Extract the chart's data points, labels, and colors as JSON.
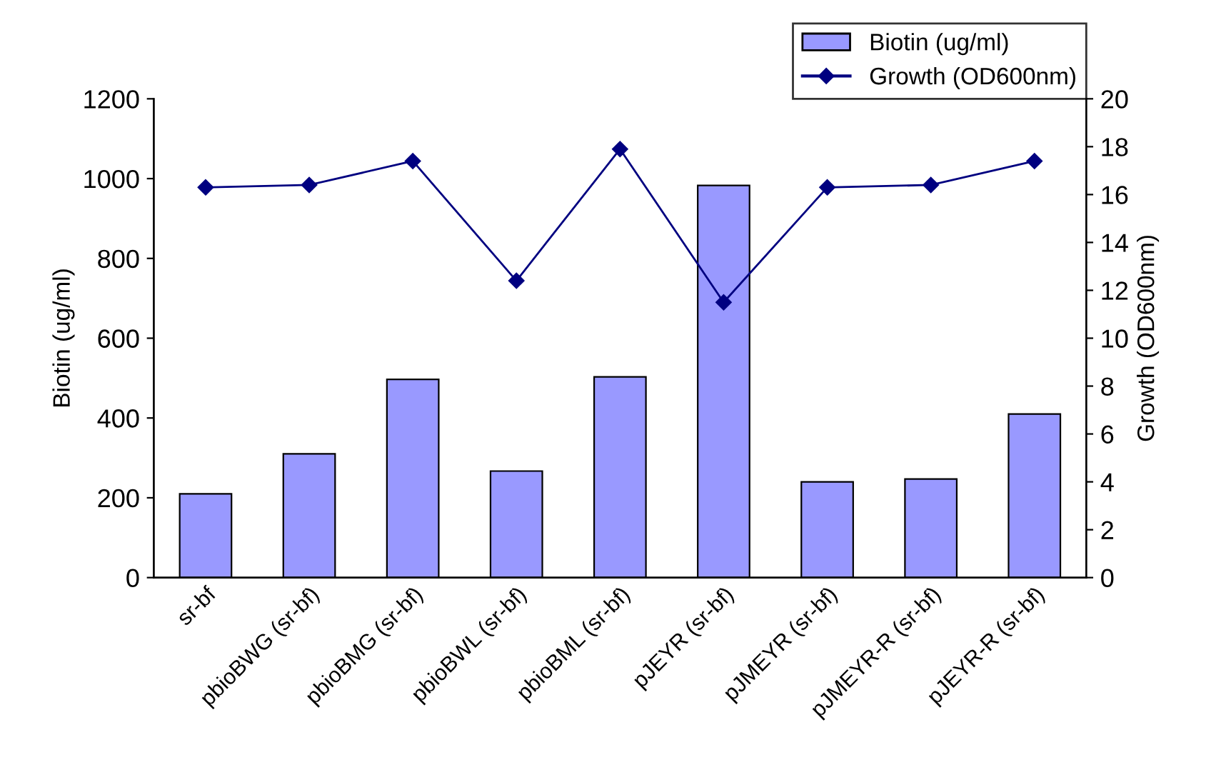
{
  "chart_data": {
    "type": "bar",
    "categories": [
      "sr-bf",
      "pbioBWG (sr-bf)",
      "pbioBMG (sr-bf)",
      "pbioBWL (sr-bf)",
      "pbioBML (sr-bf)",
      "pJEYR (sr-bf)",
      "pJMEYR (sr-bf)",
      "pJMEYR-R (sr-bf)",
      "pJEYR-R (sr-bf)"
    ],
    "series": [
      {
        "name": "Biotin (ug/ml)",
        "color": "#9999ff",
        "values": [
          210,
          310,
          497,
          267,
          503,
          983,
          240,
          247,
          410
        ]
      },
      {
        "name": "Growth (OD600nm)",
        "type": "line",
        "axis": "y2",
        "color": "#000080",
        "marker": "diamond",
        "values": [
          16.3,
          16.4,
          17.4,
          12.4,
          17.9,
          11.5,
          16.3,
          16.4,
          17.4
        ]
      }
    ],
    "ylabel": "Biotin (ug/ml)",
    "y2label": "Growth (OD600nm)",
    "ylim": [
      0,
      1200
    ],
    "yticks": [
      0,
      200,
      400,
      600,
      800,
      1000,
      1200
    ],
    "y2lim": [
      0,
      20
    ],
    "y2ticks": [
      0,
      2,
      4,
      6,
      8,
      10,
      12,
      14,
      16,
      18,
      20
    ],
    "grid": false,
    "legend": "top right"
  }
}
